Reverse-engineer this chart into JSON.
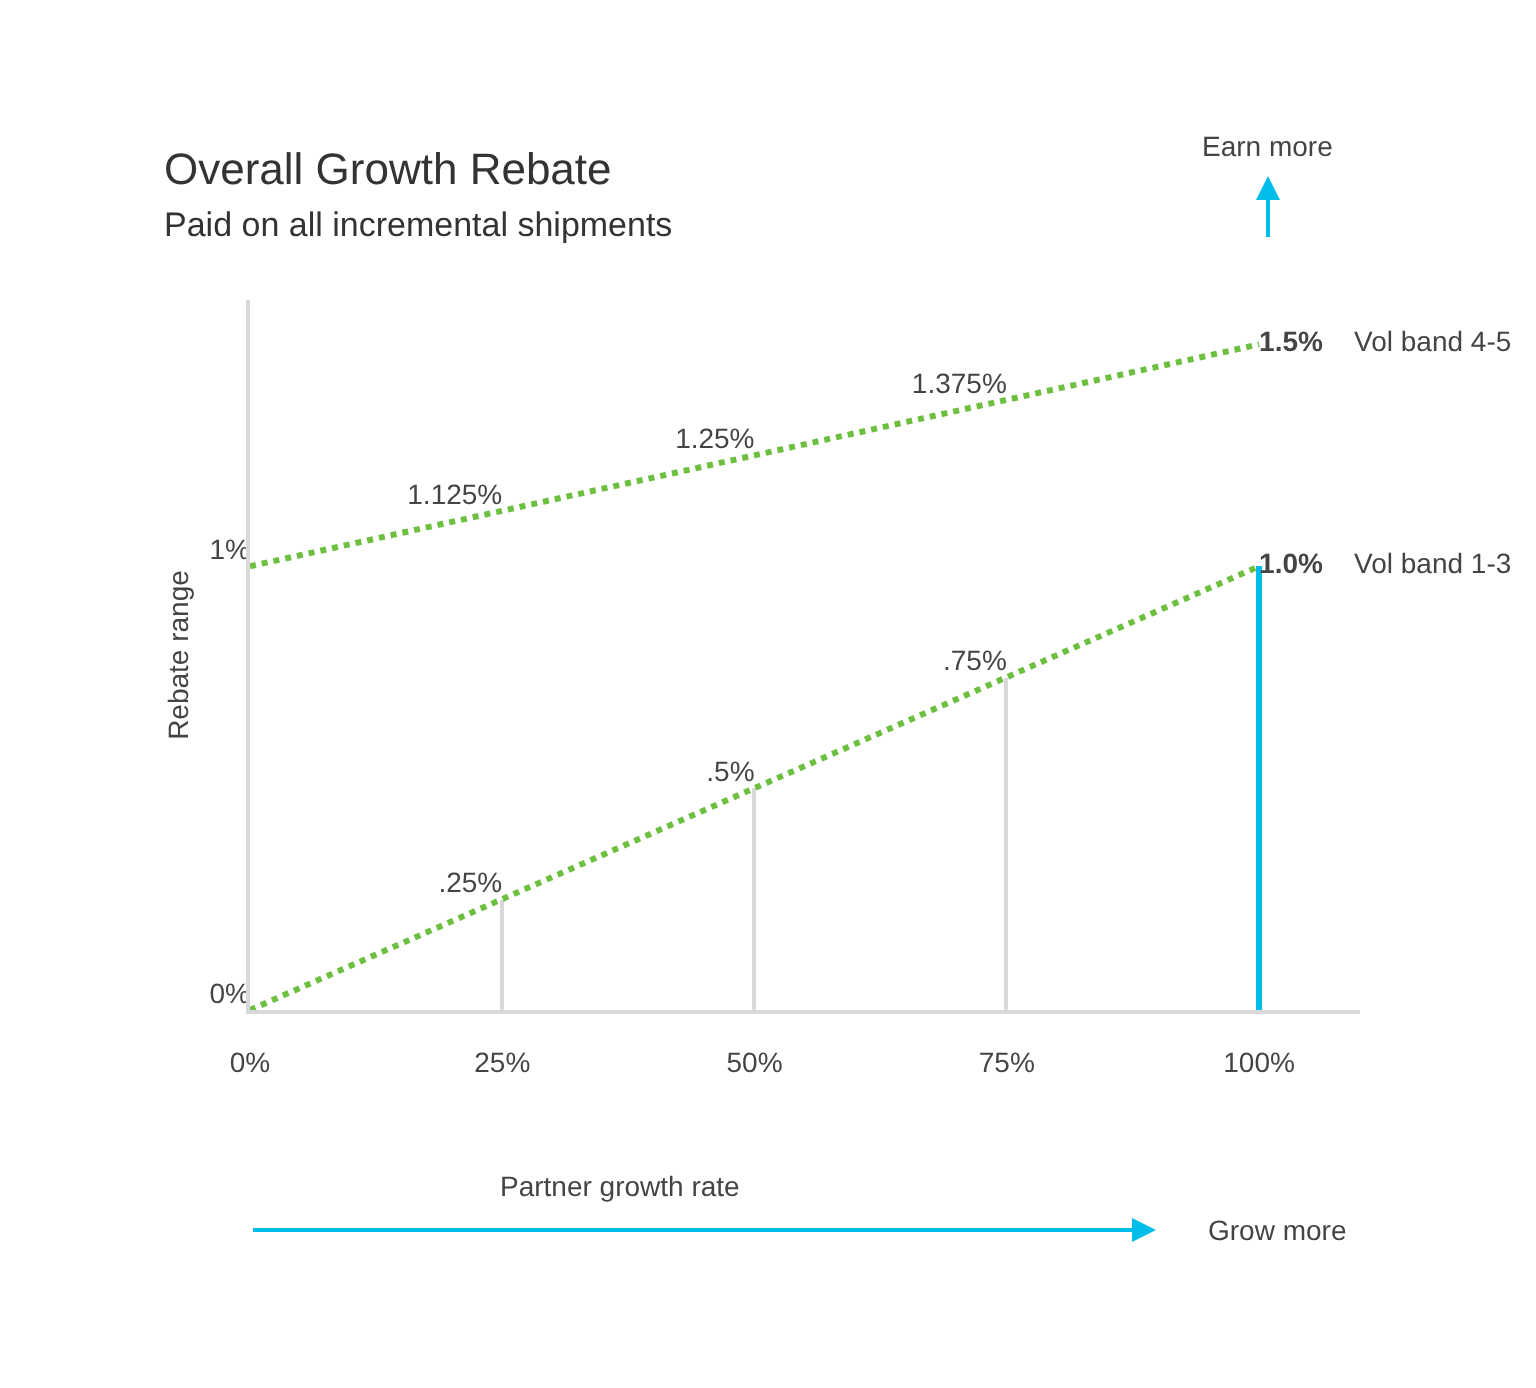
{
  "chart_data": {
    "type": "line",
    "title": "Overall Growth Rebate",
    "subtitle": "Paid on all incremental shipments",
    "xlabel": "Partner growth rate",
    "ylabel": "Rebate range",
    "x": [
      0,
      25,
      50,
      75,
      100
    ],
    "xlim": [
      0,
      110
    ],
    "xticks": [
      {
        "value": 0,
        "label": "0%"
      },
      {
        "value": 25,
        "label": "25%"
      },
      {
        "value": 50,
        "label": "50%"
      },
      {
        "value": 75,
        "label": "75%"
      },
      {
        "value": 100,
        "label": "100%"
      }
    ],
    "ylim": [
      0,
      1.6
    ],
    "tick_labels": "x",
    "legend": false,
    "line_style": "dotted",
    "series": [
      {
        "type": "bar",
        "x": [
          25,
          50,
          75,
          100
        ],
        "values": [
          0.25,
          0.5,
          0.75,
          1.0
        ],
        "colors": [
          "#d9d9d9",
          "#d9d9d9",
          "#d9d9d9",
          "#00bceb"
        ]
      },
      {
        "name": "Vol band 4-5",
        "color": "#6cbf3f",
        "values": [
          1,
          1.125,
          1.25,
          1.375,
          1.5
        ],
        "value_labels": [
          "1%",
          "1.125%",
          "1.25%",
          "1.375%",
          "1.5%"
        ]
      },
      {
        "name": "Vol band 1-3",
        "color": "#6cbf3f",
        "values": [
          0,
          0.25,
          0.5,
          0.75,
          1.0
        ],
        "value_labels": [
          "0%",
          ".25%",
          ".5%",
          ".75%",
          "1.0%"
        ]
      }
    ],
    "annotations": [
      "Earn more",
      "Grow more"
    ]
  }
}
